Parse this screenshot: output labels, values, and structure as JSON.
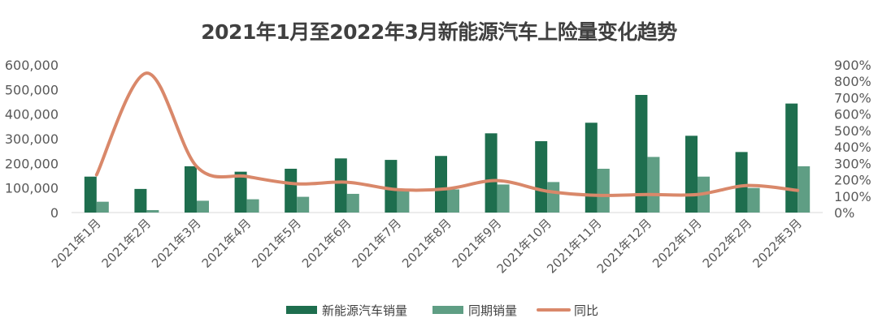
{
  "chart_data": {
    "type": "bar",
    "title": "2021年1月至2022年3月新能源汽车上险量变化趋势",
    "categories": [
      "2021年1月",
      "2021年2月",
      "2021年3月",
      "2021年4月",
      "2021年5月",
      "2021年6月",
      "2021年7月",
      "2021年8月",
      "2021年9月",
      "2021年10月",
      "2021年11月",
      "2021年12月",
      "2022年1月",
      "2022年2月",
      "2022年3月"
    ],
    "series": [
      {
        "name": "新能源汽车销量",
        "type": "bar",
        "axis": "left",
        "color": "#1e6e4e",
        "values": [
          146000,
          96000,
          188000,
          166000,
          178000,
          220000,
          214000,
          230000,
          322000,
          290000,
          365000,
          478000,
          312000,
          246000,
          443000
        ]
      },
      {
        "name": "同期销量",
        "type": "bar",
        "axis": "left",
        "color": "#5f9e84",
        "values": [
          44000,
          10000,
          48000,
          54000,
          64000,
          76000,
          88000,
          94000,
          114000,
          124000,
          178000,
          226000,
          146000,
          100000,
          188000
        ]
      },
      {
        "name": "同比",
        "type": "line",
        "axis": "right",
        "color": "#d9886a",
        "smooth": true,
        "values": [
          2.3,
          8.5,
          2.8,
          2.2,
          1.75,
          1.85,
          1.4,
          1.45,
          1.95,
          1.3,
          1.05,
          1.1,
          1.1,
          1.65,
          1.35
        ]
      }
    ],
    "y_left": {
      "min": 0,
      "max": 600000,
      "ticks": [
        "0",
        "100,000",
        "200,000",
        "300,000",
        "400,000",
        "500,000",
        "600,000"
      ]
    },
    "y_right": {
      "min": 0,
      "max": 9,
      "ticks": [
        "0%",
        "100%",
        "200%",
        "300%",
        "400%",
        "500%",
        "600%",
        "700%",
        "800%",
        "900%"
      ]
    },
    "grid": false,
    "legend": "bottom"
  }
}
